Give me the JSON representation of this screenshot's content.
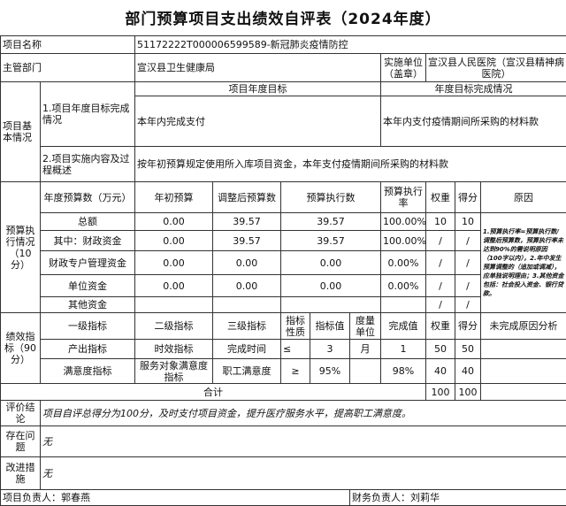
{
  "title": "部门预算项目支出绩效自评表（2024年度）",
  "project_name": {
    "label": "项目名称",
    "value": "51172222T000006599589-新冠肺炎疫情防控"
  },
  "department": {
    "label": "主管部门",
    "value": "宣汉县卫生健康局",
    "unit_label": "实施单位（盖章）",
    "unit_value": "宣汉县人民医院（宣汉县精神病医院）"
  },
  "basic": {
    "label": "项目基本情况",
    "goal_header": "项目年度目标",
    "done_header": "年度目标完成情况",
    "row1_label": "1.项目年度目标完成情况",
    "row1_goal": "本年内完成支付",
    "row1_done": "本年内支付疫情期间所采购的材料款",
    "row2_label": "2.项目实施内容及过程概述",
    "row2_value": "按年初预算规定使用所入库项目资金，本年支付疫情期间所采购的材料款"
  },
  "budget": {
    "label": "预算执行情况（10分）",
    "headers": [
      "年度预算数（万元）",
      "年初预算",
      "调整后预算数",
      "预算执行数",
      "预算执行率",
      "权重",
      "得分",
      "原因"
    ],
    "rows": [
      {
        "name": "总额",
        "initial": "0.00",
        "adjusted": "39.57",
        "executed": "39.57",
        "rate": "100.00%",
        "weight": "10",
        "score": "10"
      },
      {
        "name": "其中：财政资金",
        "initial": "0.00",
        "adjusted": "39.57",
        "executed": "39.57",
        "rate": "100.00%",
        "weight": "/",
        "score": "/"
      },
      {
        "name": "财政专户管理资金",
        "initial": "0.00",
        "adjusted": "0.00",
        "executed": "0.00",
        "rate": "0.00%",
        "weight": "/",
        "score": "/"
      },
      {
        "name": "单位资金",
        "initial": "0.00",
        "adjusted": "0.00",
        "executed": "0.00",
        "rate": "0.00%",
        "weight": "/",
        "score": "/"
      },
      {
        "name": "其他资金",
        "initial": "",
        "adjusted": "",
        "executed": "",
        "rate": "",
        "weight": "/",
        "score": "/"
      }
    ],
    "reason": "1.预算执行率=预算执行数/调整后预算数，预算执行率未达到90%的需说明原因（100字以内），2.年中发生预算调整的（追加或调减），应单独说明理由；3.其他资金包括：社会投入资金、银行贷款。"
  },
  "performance": {
    "label": "绩效指标（90分）",
    "headers": [
      "一级指标",
      "二级指标",
      "三级指标",
      "指标性质",
      "指标值",
      "度量单位",
      "完成值",
      "权重",
      "得分",
      "未完成原因分析"
    ],
    "rows": [
      {
        "l1": "产出指标",
        "l2": "时效指标",
        "l3": "完成时间",
        "nature": "≤",
        "target": "3",
        "unit": "月",
        "actual": "1",
        "weight": "50",
        "score": "50",
        "reason": ""
      },
      {
        "l1": "满意度指标",
        "l2": "服务对象满意度指标",
        "l3": "职工满意度",
        "nature": "≥",
        "target": "95%",
        "unit": "",
        "actual": "98%",
        "weight": "40",
        "score": "40",
        "reason": ""
      }
    ],
    "total_label": "合计",
    "total_weight": "100",
    "total_score": "100"
  },
  "conclusion": {
    "label": "评价结论",
    "value": "项目自评总得分为100分，及时支付项目资金，提升医疗服务水平，提高职工满意度。"
  },
  "problems": {
    "label": "存在问题",
    "value": "无"
  },
  "measures": {
    "label": "改进措施",
    "value": "无"
  },
  "footer": {
    "project_lead": "项目负责人：郭春燕",
    "finance_lead": "财务负责人：刘莉华"
  }
}
